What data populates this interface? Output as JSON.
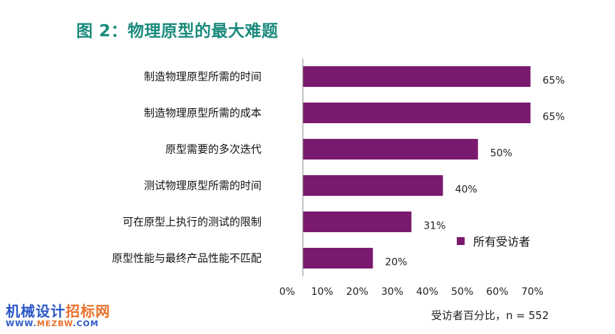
{
  "title": "图 2：物理原型的最大难题",
  "chart_data": {
    "type": "bar",
    "orientation": "horizontal",
    "categories": [
      "制造物理原型所需的时间",
      "制造物理原型所需的成本",
      "原型需要的多次迭代",
      "测试物理原型所需的时间",
      "可在原型上执行的测试的限制",
      "原型性能与最终产品性能不匹配"
    ],
    "series": [
      {
        "name": "所有受访者",
        "values": [
          65,
          65,
          50,
          40,
          31,
          20
        ],
        "color": "#7a1a6e"
      }
    ],
    "value_labels": [
      "65%",
      "65%",
      "50%",
      "40%",
      "31%",
      "20%"
    ],
    "xlim": [
      0,
      70
    ],
    "xticks": [
      "0%",
      "10%",
      "20%",
      "30%",
      "40%",
      "50%",
      "60%",
      "70%"
    ],
    "xlabel": "受访者百分比，n = 552",
    "legend_position": "right",
    "grid": false
  },
  "watermark": {
    "part1": "机械设计",
    "part2": "招标网",
    "url_part1": "WWW.",
    "url_part2": "MEZBW",
    "url_part3": ".COM"
  }
}
